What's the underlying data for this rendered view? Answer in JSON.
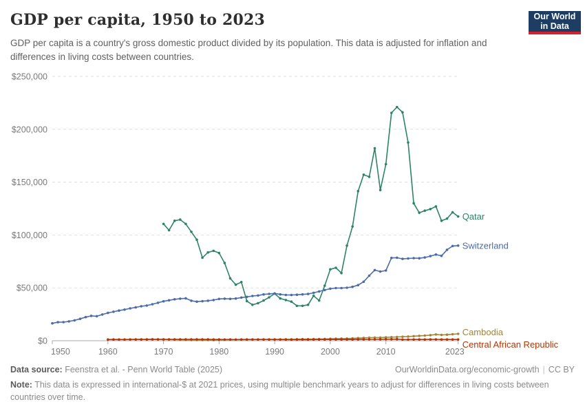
{
  "header": {
    "title": "GDP per capita, 1950 to 2023",
    "subtitle": "GDP per capita is a country's gross domestic product divided by its population. This data is adjusted for inflation and differences in living costs between countries."
  },
  "logo": {
    "line1": "Our World",
    "line2": "in Data",
    "bg_color": "#1d3d63",
    "accent_color": "#d1232f"
  },
  "chart_data": {
    "type": "line",
    "title": "GDP per capita, 1950 to 2023",
    "xlabel": "",
    "ylabel": "",
    "xlim": [
      1950,
      2023
    ],
    "ylim": [
      0,
      250000
    ],
    "grid": "dashed-horizontal",
    "legend_position": "line-end-labels",
    "x_ticks": [
      {
        "v": 1950,
        "label": "1950"
      },
      {
        "v": 1960,
        "label": "1960"
      },
      {
        "v": 1970,
        "label": "1970"
      },
      {
        "v": 1980,
        "label": "1980"
      },
      {
        "v": 1990,
        "label": "1990"
      },
      {
        "v": 2000,
        "label": "2000"
      },
      {
        "v": 2010,
        "label": "2010"
      },
      {
        "v": 2023,
        "label": "2023"
      }
    ],
    "y_ticks": [
      {
        "v": 0,
        "label": "$0"
      },
      {
        "v": 50000,
        "label": "$50,000"
      },
      {
        "v": 100000,
        "label": "$100,000"
      },
      {
        "v": 150000,
        "label": "$150,000"
      },
      {
        "v": 200000,
        "label": "$200,000"
      },
      {
        "v": 250000,
        "label": "$250,000"
      }
    ],
    "series": [
      {
        "name": "Qatar",
        "color": "#2C8465",
        "label_dy": 4.5,
        "points": [
          [
            1970,
            110500
          ],
          [
            1971,
            104500
          ],
          [
            1972,
            113500
          ],
          [
            1973,
            114500
          ],
          [
            1974,
            110500
          ],
          [
            1975,
            103000
          ],
          [
            1976,
            95500
          ],
          [
            1977,
            78500
          ],
          [
            1978,
            83500
          ],
          [
            1979,
            85000
          ],
          [
            1980,
            83000
          ],
          [
            1981,
            73500
          ],
          [
            1982,
            59000
          ],
          [
            1983,
            53000
          ],
          [
            1984,
            55500
          ],
          [
            1985,
            37500
          ],
          [
            1986,
            34000
          ],
          [
            1987,
            35500
          ],
          [
            1988,
            38000
          ],
          [
            1989,
            41000
          ],
          [
            1990,
            44500
          ],
          [
            1991,
            40000
          ],
          [
            1992,
            38500
          ],
          [
            1993,
            37000
          ],
          [
            1994,
            33000
          ],
          [
            1995,
            33000
          ],
          [
            1996,
            34000
          ],
          [
            1997,
            42500
          ],
          [
            1998,
            38000
          ],
          [
            1999,
            52000
          ],
          [
            2000,
            67500
          ],
          [
            2001,
            69000
          ],
          [
            2002,
            64000
          ],
          [
            2003,
            90000
          ],
          [
            2004,
            108000
          ],
          [
            2005,
            141500
          ],
          [
            2006,
            157000
          ],
          [
            2007,
            155000
          ],
          [
            2008,
            182000
          ],
          [
            2009,
            142500
          ],
          [
            2010,
            167000
          ],
          [
            2011,
            215500
          ],
          [
            2012,
            221000
          ],
          [
            2013,
            216000
          ],
          [
            2014,
            187500
          ],
          [
            2015,
            130000
          ],
          [
            2016,
            121000
          ],
          [
            2017,
            123000
          ],
          [
            2018,
            124500
          ],
          [
            2019,
            127000
          ],
          [
            2020,
            113500
          ],
          [
            2021,
            115500
          ],
          [
            2022,
            121500
          ],
          [
            2023,
            117500
          ]
        ]
      },
      {
        "name": "Switzerland",
        "color": "#4C6CA8",
        "label_dy": 4.5,
        "points": [
          [
            1950,
            16500
          ],
          [
            1951,
            17500
          ],
          [
            1952,
            17600
          ],
          [
            1953,
            18300
          ],
          [
            1954,
            19300
          ],
          [
            1955,
            20700
          ],
          [
            1956,
            22300
          ],
          [
            1957,
            23500
          ],
          [
            1958,
            23200
          ],
          [
            1959,
            24800
          ],
          [
            1960,
            26300
          ],
          [
            1961,
            27400
          ],
          [
            1962,
            28500
          ],
          [
            1963,
            29400
          ],
          [
            1964,
            30600
          ],
          [
            1965,
            31500
          ],
          [
            1966,
            32600
          ],
          [
            1967,
            33300
          ],
          [
            1968,
            34500
          ],
          [
            1969,
            35900
          ],
          [
            1970,
            37300
          ],
          [
            1971,
            38200
          ],
          [
            1972,
            39200
          ],
          [
            1973,
            39800
          ],
          [
            1974,
            40100
          ],
          [
            1975,
            37800
          ],
          [
            1976,
            37000
          ],
          [
            1977,
            37400
          ],
          [
            1978,
            37800
          ],
          [
            1979,
            38500
          ],
          [
            1980,
            39500
          ],
          [
            1981,
            39800
          ],
          [
            1982,
            39600
          ],
          [
            1983,
            39900
          ],
          [
            1984,
            40800
          ],
          [
            1985,
            41500
          ],
          [
            1986,
            42300
          ],
          [
            1987,
            42800
          ],
          [
            1988,
            43800
          ],
          [
            1989,
            44300
          ],
          [
            1990,
            44700
          ],
          [
            1991,
            43800
          ],
          [
            1992,
            43300
          ],
          [
            1993,
            43200
          ],
          [
            1994,
            43500
          ],
          [
            1995,
            43800
          ],
          [
            1996,
            44200
          ],
          [
            1997,
            45300
          ],
          [
            1998,
            46600
          ],
          [
            1999,
            47900
          ],
          [
            2000,
            49200
          ],
          [
            2001,
            49800
          ],
          [
            2002,
            49800
          ],
          [
            2003,
            50100
          ],
          [
            2004,
            51000
          ],
          [
            2005,
            52600
          ],
          [
            2006,
            55800
          ],
          [
            2007,
            61500
          ],
          [
            2008,
            66800
          ],
          [
            2009,
            65400
          ],
          [
            2010,
            66400
          ],
          [
            2011,
            78300
          ],
          [
            2012,
            78500
          ],
          [
            2013,
            77400
          ],
          [
            2014,
            77800
          ],
          [
            2015,
            78100
          ],
          [
            2016,
            78000
          ],
          [
            2017,
            78700
          ],
          [
            2018,
            80000
          ],
          [
            2019,
            81500
          ],
          [
            2020,
            80300
          ],
          [
            2021,
            86000
          ],
          [
            2022,
            89600
          ],
          [
            2023,
            90000
          ]
        ]
      },
      {
        "name": "Cambodia",
        "color": "#A2843B",
        "label_dy": 2,
        "points": [
          [
            1960,
            1100
          ],
          [
            1961,
            1150
          ],
          [
            1962,
            1200
          ],
          [
            1963,
            1150
          ],
          [
            1964,
            1200
          ],
          [
            1965,
            1250
          ],
          [
            1966,
            1300
          ],
          [
            1967,
            1300
          ],
          [
            1968,
            1350
          ],
          [
            1969,
            1300
          ],
          [
            1970,
            1200
          ],
          [
            1971,
            1100
          ],
          [
            1972,
            1000
          ],
          [
            1973,
            900
          ],
          [
            1974,
            850
          ],
          [
            1975,
            700
          ],
          [
            1976,
            650
          ],
          [
            1977,
            700
          ],
          [
            1978,
            700
          ],
          [
            1979,
            600
          ],
          [
            1980,
            800
          ],
          [
            1981,
            900
          ],
          [
            1982,
            950
          ],
          [
            1983,
            1000
          ],
          [
            1984,
            1000
          ],
          [
            1985,
            1050
          ],
          [
            1986,
            1100
          ],
          [
            1987,
            1100
          ],
          [
            1988,
            1150
          ],
          [
            1989,
            1200
          ],
          [
            1990,
            1250
          ],
          [
            1991,
            1300
          ],
          [
            1992,
            1350
          ],
          [
            1993,
            1350
          ],
          [
            1994,
            1400
          ],
          [
            1995,
            1500
          ],
          [
            1996,
            1500
          ],
          [
            1997,
            1550
          ],
          [
            1998,
            1600
          ],
          [
            1999,
            1700
          ],
          [
            2000,
            1800
          ],
          [
            2001,
            1900
          ],
          [
            2002,
            2000
          ],
          [
            2003,
            2100
          ],
          [
            2004,
            2300
          ],
          [
            2005,
            2500
          ],
          [
            2006,
            2700
          ],
          [
            2007,
            2900
          ],
          [
            2008,
            3000
          ],
          [
            2009,
            3000
          ],
          [
            2010,
            3200
          ],
          [
            2011,
            3400
          ],
          [
            2012,
            3600
          ],
          [
            2013,
            3800
          ],
          [
            2014,
            4000
          ],
          [
            2015,
            4300
          ],
          [
            2016,
            4600
          ],
          [
            2017,
            4900
          ],
          [
            2018,
            5300
          ],
          [
            2019,
            5900
          ],
          [
            2020,
            5500
          ],
          [
            2021,
            5700
          ],
          [
            2022,
            6100
          ],
          [
            2023,
            6500
          ]
        ]
      },
      {
        "name": "Central African Republic",
        "color": "#B13507",
        "label_dy": 12,
        "points": [
          [
            1960,
            1100
          ],
          [
            1961,
            1150
          ],
          [
            1962,
            1100
          ],
          [
            1963,
            1100
          ],
          [
            1964,
            1150
          ],
          [
            1965,
            1150
          ],
          [
            1966,
            1200
          ],
          [
            1967,
            1200
          ],
          [
            1968,
            1250
          ],
          [
            1969,
            1250
          ],
          [
            1970,
            1300
          ],
          [
            1971,
            1300
          ],
          [
            1972,
            1300
          ],
          [
            1973,
            1250
          ],
          [
            1974,
            1300
          ],
          [
            1975,
            1300
          ],
          [
            1976,
            1300
          ],
          [
            1977,
            1250
          ],
          [
            1978,
            1300
          ],
          [
            1979,
            1200
          ],
          [
            1980,
            1150
          ],
          [
            1981,
            1100
          ],
          [
            1982,
            1150
          ],
          [
            1983,
            1100
          ],
          [
            1984,
            1150
          ],
          [
            1985,
            1200
          ],
          [
            1986,
            1200
          ],
          [
            1987,
            1150
          ],
          [
            1988,
            1150
          ],
          [
            1989,
            1150
          ],
          [
            1990,
            1100
          ],
          [
            1991,
            1100
          ],
          [
            1992,
            1050
          ],
          [
            1993,
            1000
          ],
          [
            1994,
            1050
          ],
          [
            1995,
            1100
          ],
          [
            1996,
            1050
          ],
          [
            1997,
            1100
          ],
          [
            1998,
            1150
          ],
          [
            1999,
            1150
          ],
          [
            2000,
            1200
          ],
          [
            2001,
            1200
          ],
          [
            2002,
            1200
          ],
          [
            2003,
            1150
          ],
          [
            2004,
            1200
          ],
          [
            2005,
            1250
          ],
          [
            2006,
            1250
          ],
          [
            2007,
            1300
          ],
          [
            2008,
            1300
          ],
          [
            2009,
            1350
          ],
          [
            2010,
            1400
          ],
          [
            2011,
            1450
          ],
          [
            2012,
            1500
          ],
          [
            2013,
            1100
          ],
          [
            2014,
            1100
          ],
          [
            2015,
            1150
          ],
          [
            2016,
            1200
          ],
          [
            2017,
            1200
          ],
          [
            2018,
            1250
          ],
          [
            2019,
            1250
          ],
          [
            2020,
            1200
          ],
          [
            2021,
            1200
          ],
          [
            2022,
            1200
          ],
          [
            2023,
            1200
          ]
        ]
      }
    ],
    "style": {
      "gridline_color": "#dedede",
      "axis_color": "#a8a8a8",
      "tick_label_color": "#7a7a7a"
    }
  },
  "footer": {
    "source_label": "Data source:",
    "source_text": "Feenstra et al. - Penn World Table (2025)",
    "link_text": "OurWorldinData.org/economic-growth",
    "separator": "|",
    "license_text": "CC BY",
    "note_label": "Note:",
    "note_text": "This data is expressed in international-$ at 2021 prices, using multiple benchmark years to adjust for differences in living costs between countries over time."
  }
}
